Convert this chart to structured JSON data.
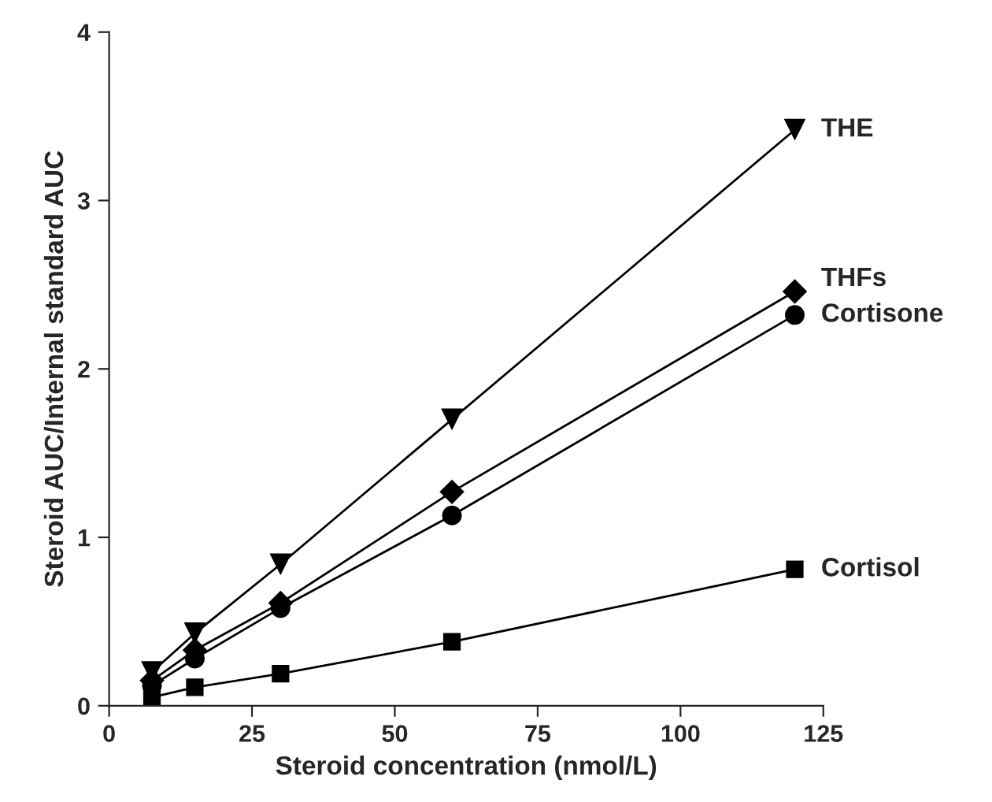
{
  "chart_data": {
    "type": "line",
    "xlabel": "Steroid concentration (nmol/L)",
    "ylabel": "Steroid AUC/Internal standard AUC",
    "x": [
      7.5,
      15,
      30,
      60,
      120
    ],
    "series": [
      {
        "name": "THE",
        "color": "#000000",
        "marker": "triangle",
        "values": [
          0.2,
          0.43,
          0.84,
          1.7,
          3.42
        ]
      },
      {
        "name": "THFs",
        "color": "#000000",
        "marker": "diamond",
        "values": [
          0.15,
          0.33,
          0.61,
          1.27,
          2.46
        ]
      },
      {
        "name": "Cortisone",
        "color": "#000000",
        "marker": "circle",
        "values": [
          0.12,
          0.28,
          0.58,
          1.13,
          2.32
        ]
      },
      {
        "name": "Cortisol",
        "color": "#000000",
        "marker": "square",
        "values": [
          0.05,
          0.11,
          0.19,
          0.38,
          0.81
        ]
      }
    ],
    "xlim": [
      0,
      125
    ],
    "ylim": [
      0,
      4
    ],
    "xticks": [
      0,
      25,
      50,
      75,
      100,
      125
    ],
    "yticks": [
      0,
      1,
      2,
      3,
      4
    ],
    "grid": false,
    "legend": false,
    "line_style": "solid"
  }
}
